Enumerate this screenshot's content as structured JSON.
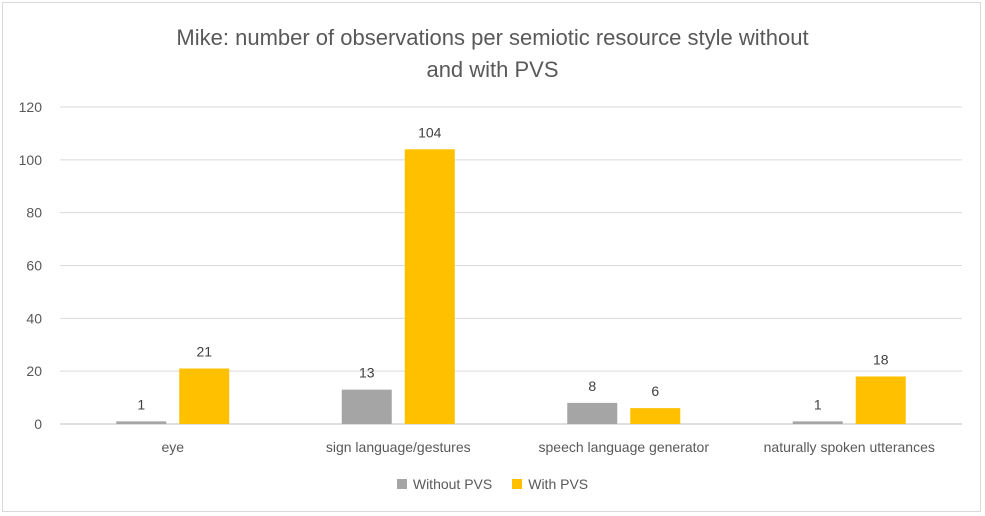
{
  "chart_data": {
    "type": "bar",
    "title_lines": [
      "Mike: number of observations per semiotic resource style without",
      "and with PVS"
    ],
    "categories": [
      "eye",
      "sign language/gestures",
      "speech language generator",
      "naturally spoken utterances"
    ],
    "series": [
      {
        "name": "Without PVS",
        "color": "#A5A5A5",
        "values": [
          1,
          13,
          8,
          1
        ]
      },
      {
        "name": "With PVS",
        "color": "#FFC000",
        "values": [
          21,
          104,
          6,
          18
        ]
      }
    ],
    "xlabel": "",
    "ylabel": "",
    "ylim": [
      0,
      120
    ],
    "yticks": [
      0,
      20,
      40,
      60,
      80,
      100,
      120
    ],
    "grid": true,
    "legend_position": "bottom"
  }
}
